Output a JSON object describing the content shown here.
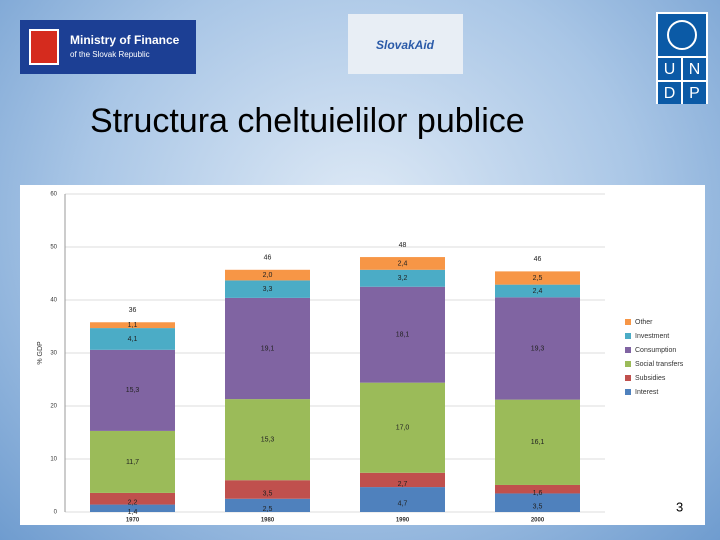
{
  "header": {
    "logo_left_line1": "Ministry of Finance",
    "logo_left_line2": "of the Slovak Republic",
    "logo_center": "SlovakAid",
    "logo_right": [
      "U",
      "N",
      "D",
      "P"
    ]
  },
  "title": "Structura cheltuielilor publice",
  "page_number": "3",
  "chart_data": {
    "type": "stacked_bar",
    "categories": [
      "1970",
      "1980",
      "1990",
      "2000"
    ],
    "y_label": "% GDP",
    "ylim": [
      0,
      60
    ],
    "yticks": [
      0,
      10,
      20,
      30,
      40,
      50,
      60
    ],
    "totals": [
      36,
      46,
      48,
      46
    ],
    "legend": "right",
    "series": [
      {
        "name": "Interest",
        "color": "#4f81bd",
        "values": [
          1.4,
          2.5,
          4.7,
          3.5
        ],
        "value_labels": [
          "1,4",
          "2,5",
          "4,7",
          "3,5"
        ]
      },
      {
        "name": "Subsidies",
        "color": "#c0504d",
        "values": [
          2.2,
          3.5,
          2.7,
          1.6
        ],
        "value_labels": [
          "2,2",
          "3,5",
          "2,7",
          "1,6"
        ]
      },
      {
        "name": "Social transfers",
        "color": "#9bbb59",
        "values": [
          11.7,
          15.3,
          17.0,
          16.1
        ],
        "value_labels": [
          "11,7",
          "15,3",
          "17,0",
          "16,1"
        ]
      },
      {
        "name": "Consumption",
        "color": "#8064a2",
        "values": [
          15.3,
          19.1,
          18.1,
          19.3
        ],
        "value_labels": [
          "15,3",
          "19,1",
          "18,1",
          "19,3"
        ]
      },
      {
        "name": "Investment",
        "color": "#4bacc6",
        "values": [
          4.1,
          3.3,
          3.2,
          2.4
        ],
        "value_labels": [
          "4,1",
          "3,3",
          "3,2",
          "2,4"
        ]
      },
      {
        "name": "Other",
        "color": "#f79646",
        "values": [
          1.1,
          2.0,
          2.4,
          2.5
        ],
        "value_labels": [
          "1,1",
          "2,0",
          "2,4",
          "2,5"
        ]
      }
    ]
  }
}
